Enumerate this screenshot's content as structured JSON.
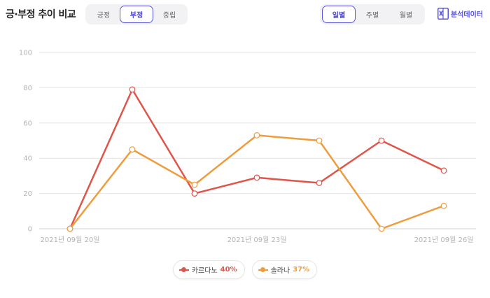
{
  "header": {
    "title": "긍·부정 추이 비교",
    "sentiment_tabs": [
      {
        "label": "긍정",
        "active": false
      },
      {
        "label": "부정",
        "active": true
      },
      {
        "label": "중립",
        "active": false
      }
    ],
    "period_tabs": [
      {
        "label": "일별",
        "active": true
      },
      {
        "label": "주별",
        "active": false
      },
      {
        "label": "월별",
        "active": false
      }
    ],
    "export_label": "분석데이터",
    "export_icon": "excel-icon"
  },
  "colors": {
    "accent": "#5a55e0",
    "series1": "#e0554a",
    "series2": "#ee9d3e",
    "grid": "#e6e6e6"
  },
  "chart_data": {
    "type": "line",
    "x": [
      "2021-09-20",
      "2021-09-21",
      "2021-09-22",
      "2021-09-23",
      "2021-09-24",
      "2021-09-25",
      "2021-09-26"
    ],
    "x_tick_labels": [
      "2021년 09월 20일",
      "2021년 09월 23일",
      "2021년 09월 26일"
    ],
    "y_ticks": [
      0,
      20,
      40,
      60,
      80,
      100
    ],
    "ylim": [
      0,
      100
    ],
    "grid": true,
    "legend_position": "bottom-center",
    "series": [
      {
        "name": "카르다노",
        "share": "40%",
        "values": [
          0,
          79,
          20,
          29,
          26,
          50,
          33
        ]
      },
      {
        "name": "솔라나",
        "share": "37%",
        "values": [
          0,
          45,
          25,
          53,
          50,
          0,
          13
        ]
      }
    ]
  }
}
